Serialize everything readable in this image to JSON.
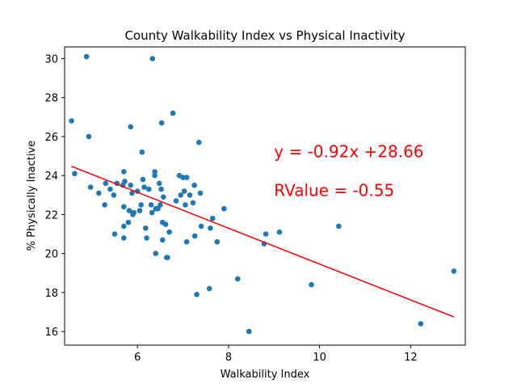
{
  "chart_data": {
    "type": "scatter",
    "title": "County Walkability Index vs Physical Inactivity",
    "xlabel": "Walkability Index",
    "ylabel": "% Physically Inactive",
    "xlim": [
      4.4,
      13.2
    ],
    "ylim": [
      15.3,
      30.6
    ],
    "xticks": [
      6,
      8,
      10,
      12
    ],
    "yticks": [
      16,
      18,
      20,
      22,
      24,
      26,
      28,
      30
    ],
    "grid": false,
    "point_color": "#1f77b4",
    "points": [
      [
        4.55,
        26.8
      ],
      [
        4.62,
        24.1
      ],
      [
        4.88,
        30.1
      ],
      [
        4.93,
        26.0
      ],
      [
        4.97,
        23.4
      ],
      [
        5.15,
        23.1
      ],
      [
        5.28,
        22.5
      ],
      [
        5.3,
        23.6
      ],
      [
        5.4,
        23.3
      ],
      [
        5.48,
        23.0
      ],
      [
        5.5,
        21.0
      ],
      [
        5.55,
        23.6
      ],
      [
        5.68,
        23.5
      ],
      [
        5.7,
        24.2
      ],
      [
        5.7,
        22.4
      ],
      [
        5.7,
        21.4
      ],
      [
        5.7,
        20.8
      ],
      [
        5.72,
        23.7
      ],
      [
        5.8,
        21.6
      ],
      [
        5.82,
        22.2
      ],
      [
        5.85,
        26.5
      ],
      [
        5.85,
        23.5
      ],
      [
        5.88,
        23.1
      ],
      [
        5.9,
        22.0
      ],
      [
        5.92,
        22.1
      ],
      [
        6.0,
        23.2
      ],
      [
        6.05,
        22.2
      ],
      [
        6.08,
        22.5
      ],
      [
        6.1,
        25.2
      ],
      [
        6.12,
        23.8
      ],
      [
        6.15,
        23.4
      ],
      [
        6.18,
        21.3
      ],
      [
        6.2,
        20.8
      ],
      [
        6.25,
        23.3
      ],
      [
        6.3,
        22.5
      ],
      [
        6.32,
        22.1
      ],
      [
        6.33,
        30.0
      ],
      [
        6.38,
        24.2
      ],
      [
        6.38,
        24.0
      ],
      [
        6.4,
        22.3
      ],
      [
        6.4,
        20.0
      ],
      [
        6.45,
        22.3
      ],
      [
        6.48,
        23.6
      ],
      [
        6.5,
        22.5
      ],
      [
        6.52,
        23.3
      ],
      [
        6.53,
        26.7
      ],
      [
        6.55,
        20.7
      ],
      [
        6.55,
        21.6
      ],
      [
        6.57,
        22.9
      ],
      [
        6.62,
        21.5
      ],
      [
        6.64,
        19.8
      ],
      [
        6.66,
        19.8
      ],
      [
        6.7,
        21.1
      ],
      [
        6.78,
        27.2
      ],
      [
        6.85,
        22.7
      ],
      [
        6.92,
        24.0
      ],
      [
        6.95,
        23.0
      ],
      [
        7.0,
        23.9
      ],
      [
        7.03,
        23.2
      ],
      [
        7.05,
        22.5
      ],
      [
        7.08,
        20.6
      ],
      [
        7.08,
        23.9
      ],
      [
        7.15,
        23.0
      ],
      [
        7.22,
        22.6
      ],
      [
        7.25,
        23.5
      ],
      [
        7.26,
        20.9
      ],
      [
        7.3,
        17.9
      ],
      [
        7.35,
        25.7
      ],
      [
        7.38,
        23.1
      ],
      [
        7.4,
        21.4
      ],
      [
        7.58,
        18.2
      ],
      [
        7.6,
        21.3
      ],
      [
        7.65,
        21.8
      ],
      [
        7.75,
        20.6
      ],
      [
        7.9,
        22.3
      ],
      [
        8.2,
        18.7
      ],
      [
        8.45,
        16.0
      ],
      [
        8.78,
        20.5
      ],
      [
        8.82,
        21.0
      ],
      [
        9.12,
        21.1
      ],
      [
        9.82,
        18.4
      ],
      [
        10.42,
        21.4
      ],
      [
        12.22,
        16.4
      ],
      [
        12.95,
        19.1
      ]
    ],
    "regression": {
      "slope": -0.92,
      "intercept": 28.66,
      "x_range": [
        4.55,
        12.95
      ],
      "color": "#ff0000"
    },
    "annotations": [
      {
        "text": "y = -0.92x +28.66",
        "x": 9.0,
        "y": 24.95,
        "color": "#ff0000"
      },
      {
        "text": "RValue = -0.55",
        "x": 9.0,
        "y": 22.95,
        "color": "#ff0000"
      }
    ]
  }
}
